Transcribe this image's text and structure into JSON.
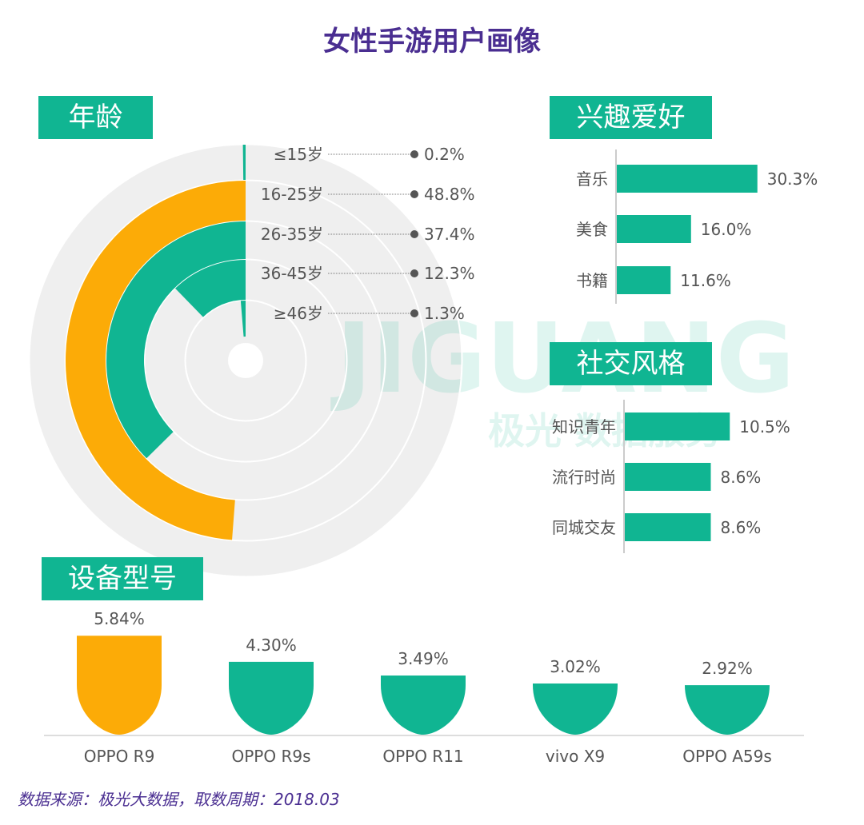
{
  "title": "女性手游用户画像",
  "watermark": {
    "logo": "JIGUANG",
    "sub": "极光 数据服务"
  },
  "colors": {
    "teal": "#10b592",
    "orange": "#fcab07",
    "track": "#efefef",
    "title": "#4a2e91",
    "text": "#555555"
  },
  "source": "数据来源：极光大数据，取数周期：2018.03",
  "chart_data": [
    {
      "type": "radial-bar",
      "title": "年龄",
      "categories": [
        "≤15岁",
        "16-25岁",
        "26-35岁",
        "36-45岁",
        "≥46岁"
      ],
      "values": [
        0.2,
        48.8,
        37.4,
        12.3,
        1.3
      ],
      "labels": [
        "0.2%",
        "48.8%",
        "37.4%",
        "12.3%",
        "1.3%"
      ],
      "highlight": "16-25岁",
      "max": 100
    },
    {
      "type": "bar",
      "orientation": "horizontal",
      "title": "兴趣爱好",
      "categories": [
        "音乐",
        "美食",
        "书籍"
      ],
      "values": [
        30.3,
        16.0,
        11.6
      ],
      "labels": [
        "30.3%",
        "16.0%",
        "11.6%"
      ]
    },
    {
      "type": "bar",
      "orientation": "horizontal",
      "title": "社交风格",
      "categories": [
        "知识青年",
        "流行时尚",
        "同城交友"
      ],
      "values": [
        10.5,
        8.6,
        8.6
      ],
      "labels": [
        "10.5%",
        "8.6%",
        "8.6%"
      ]
    },
    {
      "type": "bar",
      "title": "设备型号",
      "categories": [
        "OPPO R9",
        "OPPO R9s",
        "OPPO R11",
        "vivo X9",
        "OPPO A59s"
      ],
      "values": [
        5.84,
        4.3,
        3.49,
        3.02,
        2.92
      ],
      "labels": [
        "5.84%",
        "4.30%",
        "3.49%",
        "3.02%",
        "2.92%"
      ],
      "highlight": "OPPO R9"
    }
  ]
}
